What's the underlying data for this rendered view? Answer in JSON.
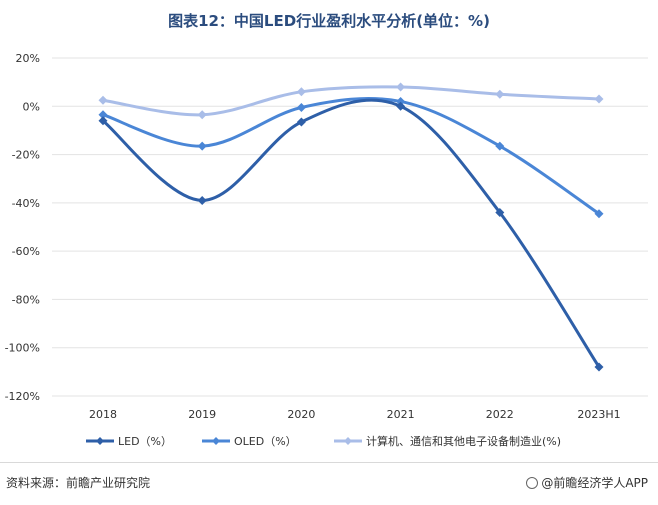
{
  "title": "图表12：中国LED行业盈利水平分析(单位：%)",
  "source": "资料来源：前瞻产业研究院",
  "brand": "@前瞻经济学人APP",
  "chart_data": {
    "type": "line",
    "title": "图表12：中国LED行业盈利水平分析(单位：%)",
    "categories": [
      "2018",
      "2019",
      "2020",
      "2021",
      "2022",
      "2023H1"
    ],
    "ylim": [
      -120,
      20
    ],
    "yticks": [
      20,
      0,
      -20,
      -40,
      -60,
      -80,
      -100,
      -120
    ],
    "ytick_labels": [
      "20%",
      "0%",
      "-20%",
      "-40%",
      "-60%",
      "-80%",
      "-100%",
      "-120%"
    ],
    "grid": true,
    "legend": "bottom",
    "series": [
      {
        "name": "LED（%）",
        "color": "#2e5fa8",
        "values": [
          -6,
          -39,
          -6.5,
          0,
          -44,
          -108
        ]
      },
      {
        "name": "OLED（%）",
        "color": "#4a86d6",
        "values": [
          -3.5,
          -16.5,
          -0.5,
          2,
          -16.5,
          -44.5
        ]
      },
      {
        "name": "计算机、通信和其他电子设备制造业(%)",
        "color": "#a9bde8",
        "values": [
          2.5,
          -3.5,
          6,
          8,
          5,
          3
        ]
      }
    ]
  }
}
